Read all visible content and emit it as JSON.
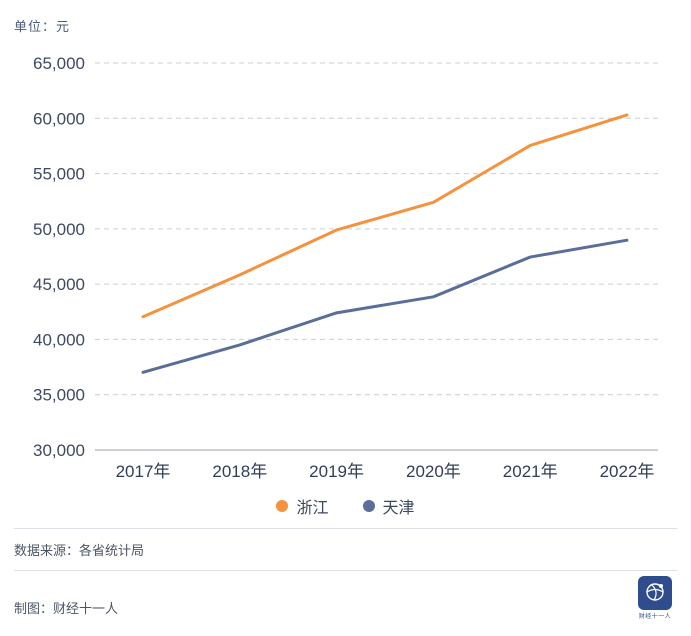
{
  "unit_label": "单位：元",
  "chart_data": {
    "type": "line",
    "x": [
      "2017年",
      "2018年",
      "2019年",
      "2020年",
      "2021年",
      "2022年"
    ],
    "series": [
      {
        "name": "浙江",
        "color": "#f5923e",
        "values": [
          42046,
          45840,
          49899,
          52397,
          57541,
          60302
        ]
      },
      {
        "name": "天津",
        "color": "#5a6e99",
        "values": [
          37022,
          39506,
          42404,
          43854,
          47449,
          48976
        ]
      }
    ],
    "ylim": [
      30000,
      65000
    ],
    "ytick_step": 5000,
    "ytick_labels": [
      "30,000",
      "35,000",
      "40,000",
      "45,000",
      "50,000",
      "55,000",
      "60,000",
      "65,000"
    ],
    "grid": "dashed-horizontal",
    "legend_position": "bottom"
  },
  "footer": {
    "source": "数据来源：各省统计局",
    "credit": "制图：财经十一人",
    "logo_text": "财经十一人"
  }
}
